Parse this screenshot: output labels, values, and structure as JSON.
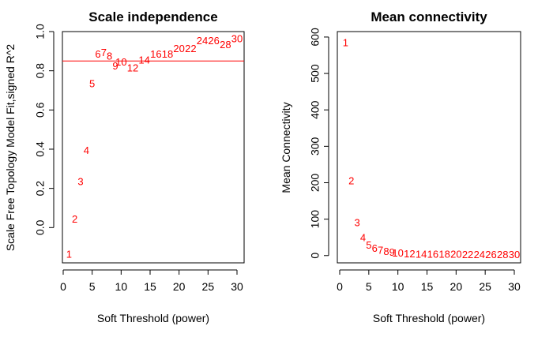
{
  "chart_data": [
    {
      "type": "scatter",
      "title": "Scale independence",
      "xlabel": "Soft Threshold (power)",
      "ylabel": "Scale Free Topology Model Fit,signed R^2",
      "xlim": [
        0,
        30
      ],
      "ylim": [
        -0.18,
        1.0
      ],
      "xticks": [
        0,
        5,
        10,
        15,
        20,
        25,
        30
      ],
      "yticks": [
        0.0,
        0.2,
        0.4,
        0.6,
        0.8,
        1.0
      ],
      "marker": "text-label",
      "point_color": "#ff0000",
      "hline": {
        "y": 0.85,
        "color": "#ff0000"
      },
      "points": [
        {
          "label": "1",
          "x": 1,
          "y": -0.14
        },
        {
          "label": "2",
          "x": 2,
          "y": 0.04
        },
        {
          "label": "3",
          "x": 3,
          "y": 0.23
        },
        {
          "label": "4",
          "x": 4,
          "y": 0.39
        },
        {
          "label": "5",
          "x": 5,
          "y": 0.73
        },
        {
          "label": "6",
          "x": 6,
          "y": 0.88
        },
        {
          "label": "7",
          "x": 7,
          "y": 0.89
        },
        {
          "label": "8",
          "x": 8,
          "y": 0.87
        },
        {
          "label": "9",
          "x": 9,
          "y": 0.82
        },
        {
          "label": "10",
          "x": 10,
          "y": 0.84
        },
        {
          "label": "12",
          "x": 12,
          "y": 0.81
        },
        {
          "label": "14",
          "x": 14,
          "y": 0.85
        },
        {
          "label": "16",
          "x": 16,
          "y": 0.88
        },
        {
          "label": "18",
          "x": 18,
          "y": 0.88
        },
        {
          "label": "20",
          "x": 20,
          "y": 0.91
        },
        {
          "label": "22",
          "x": 22,
          "y": 0.91
        },
        {
          "label": "24",
          "x": 24,
          "y": 0.95
        },
        {
          "label": "26",
          "x": 26,
          "y": 0.95
        },
        {
          "label": "28",
          "x": 28,
          "y": 0.93
        },
        {
          "label": "30",
          "x": 30,
          "y": 0.96
        }
      ]
    },
    {
      "type": "scatter",
      "title": "Mean connectivity",
      "xlabel": "Soft Threshold (power)",
      "ylabel": "Mean Connectivity",
      "xlim": [
        0,
        30
      ],
      "ylim": [
        -20,
        615
      ],
      "xticks": [
        0,
        5,
        10,
        15,
        20,
        25,
        30
      ],
      "yticks": [
        0,
        100,
        200,
        300,
        400,
        500,
        600
      ],
      "marker": "text-label",
      "point_color": "#ff0000",
      "points": [
        {
          "label": "1",
          "x": 1,
          "y": 582
        },
        {
          "label": "2",
          "x": 2,
          "y": 203
        },
        {
          "label": "3",
          "x": 3,
          "y": 88
        },
        {
          "label": "4",
          "x": 4,
          "y": 47
        },
        {
          "label": "5",
          "x": 5,
          "y": 27
        },
        {
          "label": "6",
          "x": 6,
          "y": 18
        },
        {
          "label": "7",
          "x": 7,
          "y": 12
        },
        {
          "label": "8",
          "x": 8,
          "y": 9
        },
        {
          "label": "9",
          "x": 9,
          "y": 7
        },
        {
          "label": "10",
          "x": 10,
          "y": 5
        },
        {
          "label": "12",
          "x": 12,
          "y": 3
        },
        {
          "label": "14",
          "x": 14,
          "y": 2
        },
        {
          "label": "16",
          "x": 16,
          "y": 1.5
        },
        {
          "label": "18",
          "x": 18,
          "y": 1.2
        },
        {
          "label": "20",
          "x": 20,
          "y": 1
        },
        {
          "label": "22",
          "x": 22,
          "y": 0.8
        },
        {
          "label": "24",
          "x": 24,
          "y": 0.7
        },
        {
          "label": "26",
          "x": 26,
          "y": 0.6
        },
        {
          "label": "28",
          "x": 28,
          "y": 0.5
        },
        {
          "label": "30",
          "x": 30,
          "y": 0.4
        }
      ]
    }
  ]
}
